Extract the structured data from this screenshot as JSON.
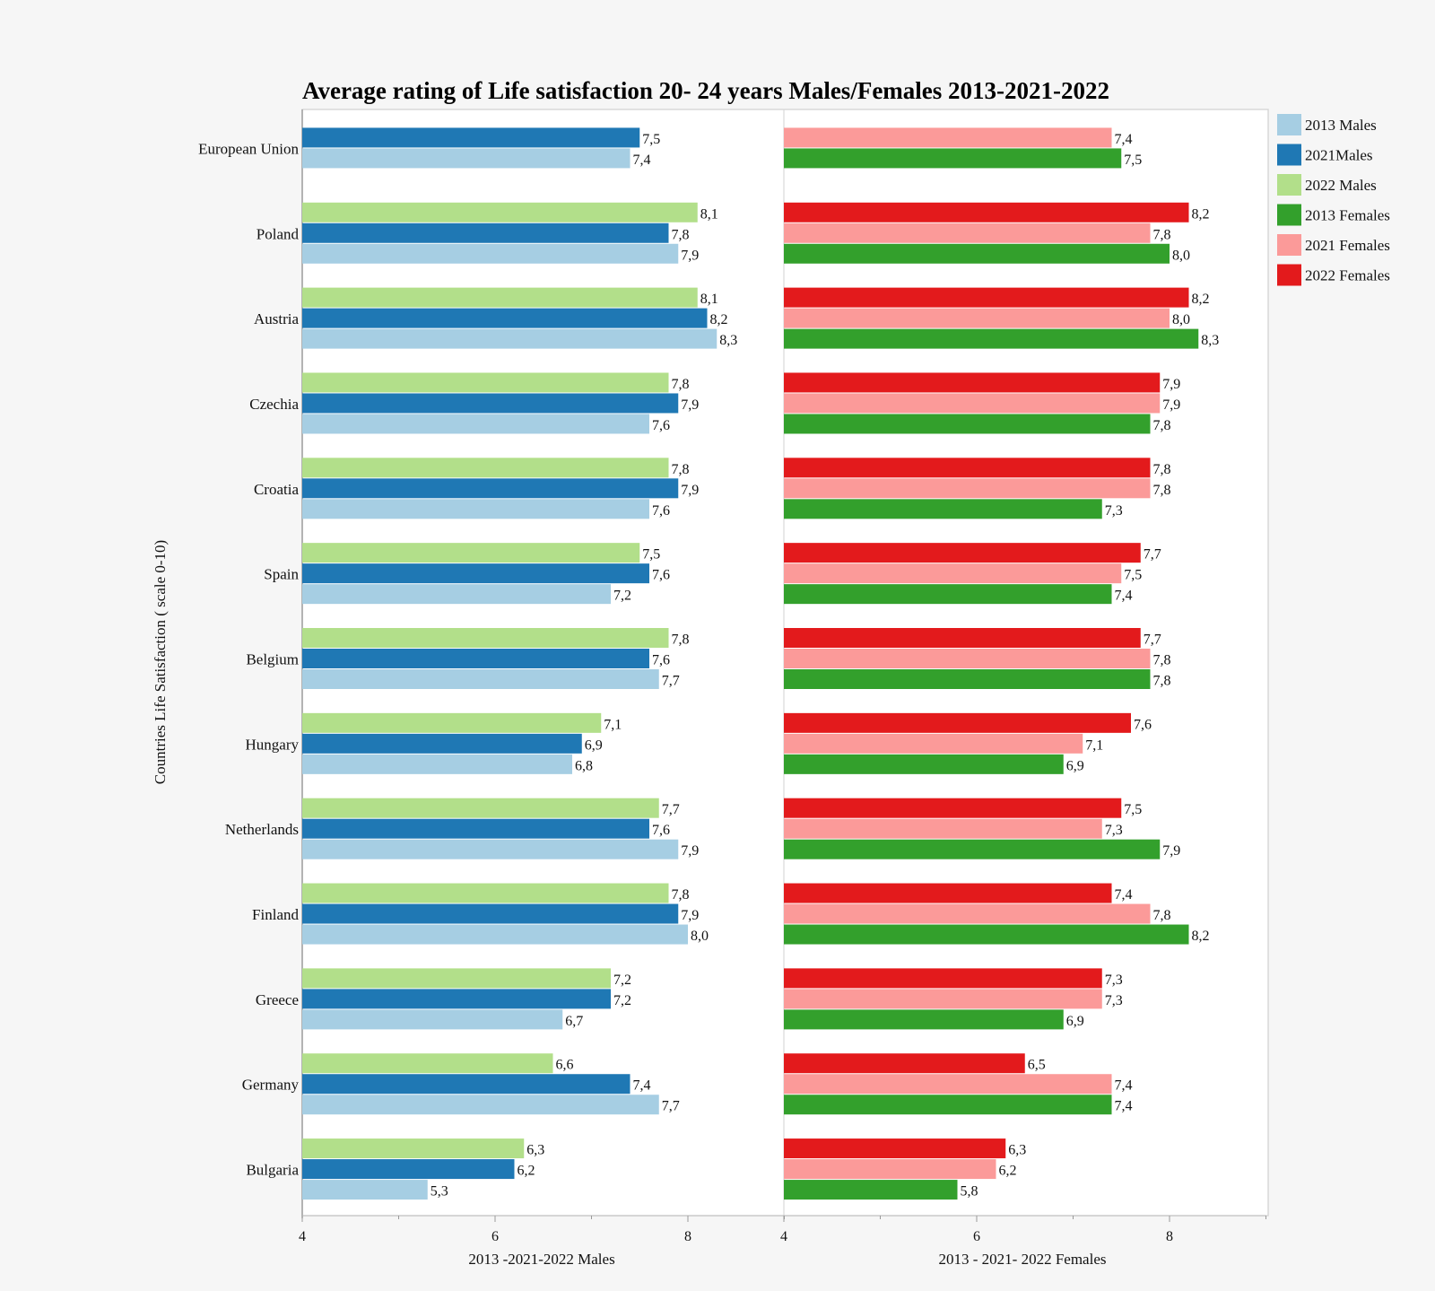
{
  "chart_data": {
    "type": "bar",
    "orientation": "horizontal",
    "title": "Average rating of Life satisfaction 20- 24 years Males/Females 2013-2021-2022",
    "ylabel": "Countries Life Satisfaction ( scale 0-10)",
    "categories": [
      "European Union",
      "Poland",
      "Austria",
      "Czechia",
      "Croatia",
      "Spain",
      "Belgium",
      "Hungary",
      "Netherlands",
      "Finland",
      "Greece",
      "Germany",
      "Bulgaria"
    ],
    "legend_position": "top-right",
    "legend": [
      {
        "name": "2013 Males",
        "color": "#a6cee3"
      },
      {
        "name": "2021Males",
        "color": "#1f78b4"
      },
      {
        "name": "2022 Males",
        "color": "#b2df8a"
      },
      {
        "name": "2013 Females",
        "color": "#33a02c"
      },
      {
        "name": "2021 Females",
        "color": "#fb9a99"
      },
      {
        "name": "2022 Females",
        "color": "#e31a1c"
      }
    ],
    "panels": [
      {
        "xlabel": "2013 -2021-2022 Males",
        "xlim": [
          4,
          9
        ],
        "xticks": [
          "4",
          "6",
          "8"
        ],
        "series": [
          {
            "name": "2022 Males",
            "color": "#b2df8a",
            "values": [
              null,
              8.1,
              8.1,
              7.8,
              7.8,
              7.5,
              7.8,
              7.1,
              7.7,
              7.8,
              7.2,
              6.6,
              6.3
            ],
            "labels": [
              null,
              "8,1",
              "8,1",
              "7,8",
              "7,8",
              "7,5",
              "7,8",
              "7,1",
              "7,7",
              "7,8",
              "7,2",
              "6,6",
              "6,3"
            ]
          },
          {
            "name": "2021Males",
            "color": "#1f78b4",
            "values": [
              7.5,
              7.8,
              8.2,
              7.9,
              7.9,
              7.6,
              7.6,
              6.9,
              7.6,
              7.9,
              7.2,
              7.4,
              6.2
            ],
            "labels": [
              "7,5",
              "7,8",
              "8,2",
              "7,9",
              "7,9",
              "7,6",
              "7,6",
              "6,9",
              "7,6",
              "7,9",
              "7,2",
              "7,4",
              "6,2"
            ]
          },
          {
            "name": "2013 Males",
            "color": "#a6cee3",
            "values": [
              7.4,
              7.9,
              8.3,
              7.6,
              7.6,
              7.2,
              7.7,
              6.8,
              7.9,
              8.0,
              6.7,
              7.7,
              5.3
            ],
            "labels": [
              "7,4",
              "7,9",
              "8,3",
              "7,6",
              "7,6",
              "7,2",
              "7,7",
              "6,8",
              "7,9",
              "8,0",
              "6,7",
              "7,7",
              "5,3"
            ]
          }
        ]
      },
      {
        "xlabel": "2013 - 2021- 2022 Females",
        "xlim": [
          4,
          9
        ],
        "xticks": [
          "4",
          "6",
          "8"
        ],
        "series": [
          {
            "name": "2022 Females",
            "color": "#e31a1c",
            "values": [
              null,
              8.2,
              8.2,
              7.9,
              7.8,
              7.7,
              7.7,
              7.6,
              7.5,
              7.4,
              7.3,
              6.5,
              6.3
            ],
            "labels": [
              null,
              "8,2",
              "8,2",
              "7,9",
              "7,8",
              "7,7",
              "7,7",
              "7,6",
              "7,5",
              "7,4",
              "7,3",
              "6,5",
              "6,3"
            ]
          },
          {
            "name": "2021 Females",
            "color": "#fb9a99",
            "values": [
              7.4,
              7.8,
              8.0,
              7.9,
              7.8,
              7.5,
              7.8,
              7.1,
              7.3,
              7.8,
              7.3,
              7.4,
              6.2
            ],
            "labels": [
              "7,4",
              "7,8",
              "8,0",
              "7,9",
              "7,8",
              "7,5",
              "7,8",
              "7,1",
              "7,3",
              "7,8",
              "7,3",
              "7,4",
              "6,2"
            ]
          },
          {
            "name": "2013 Females",
            "color": "#33a02c",
            "values": [
              7.5,
              8.0,
              8.3,
              7.8,
              7.3,
              7.4,
              7.8,
              6.9,
              7.9,
              8.2,
              6.9,
              7.4,
              5.8
            ],
            "labels": [
              "7,5",
              "8,0",
              "8,3",
              "7,8",
              "7,3",
              "7,4",
              "7,8",
              "6,9",
              "7,9",
              "8,2",
              "6,9",
              "7,4",
              "5,8"
            ]
          }
        ]
      }
    ],
    "grid": false
  }
}
